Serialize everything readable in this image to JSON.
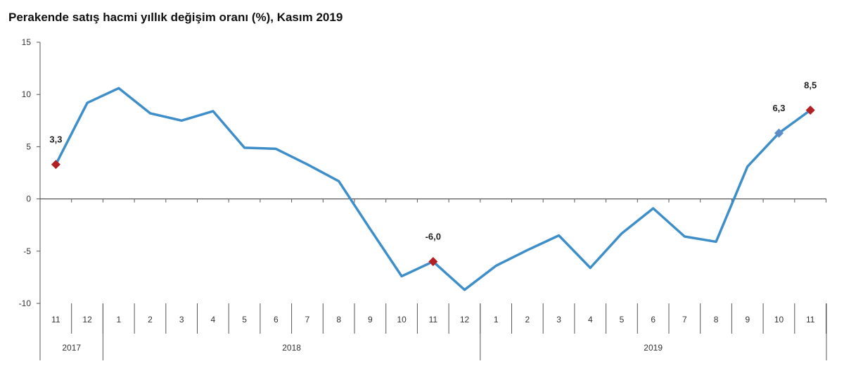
{
  "chart_data": {
    "type": "line",
    "title": "Perakende satış hacmi yıllık değişim oranı (%), Kasım 2019",
    "xlabel": "",
    "ylabel": "",
    "ylim": [
      -10,
      15
    ],
    "yticks": [
      15,
      10,
      5,
      0,
      -5,
      -10
    ],
    "categories": [
      "11",
      "12",
      "1",
      "2",
      "3",
      "4",
      "5",
      "6",
      "7",
      "8",
      "9",
      "10",
      "11",
      "12",
      "1",
      "2",
      "3",
      "4",
      "5",
      "6",
      "7",
      "8",
      "9",
      "10",
      "11"
    ],
    "year_groups": [
      {
        "label": "2017",
        "count": 2
      },
      {
        "label": "2018",
        "count": 12
      },
      {
        "label": "2019",
        "count": 11
      }
    ],
    "series": [
      {
        "color": "#3d8ec9",
        "values": [
          3.3,
          9.2,
          10.6,
          8.2,
          7.5,
          8.4,
          4.9,
          4.8,
          3.3,
          1.7,
          -2.9,
          -7.4,
          -6.0,
          -8.7,
          -6.4,
          -4.9,
          -3.5,
          -6.6,
          -3.3,
          -0.9,
          -3.6,
          -4.1,
          3.1,
          6.3,
          8.5
        ]
      }
    ],
    "highlights": [
      {
        "index": 0,
        "label": "3,3",
        "color": "#b22024"
      },
      {
        "index": 12,
        "label": "-6,0",
        "color": "#b22024"
      },
      {
        "index": 23,
        "label": "6,3",
        "color": "#5b8ec9"
      },
      {
        "index": 24,
        "label": "8,5",
        "color": "#b22024"
      }
    ],
    "grid": false,
    "legend": "none"
  }
}
